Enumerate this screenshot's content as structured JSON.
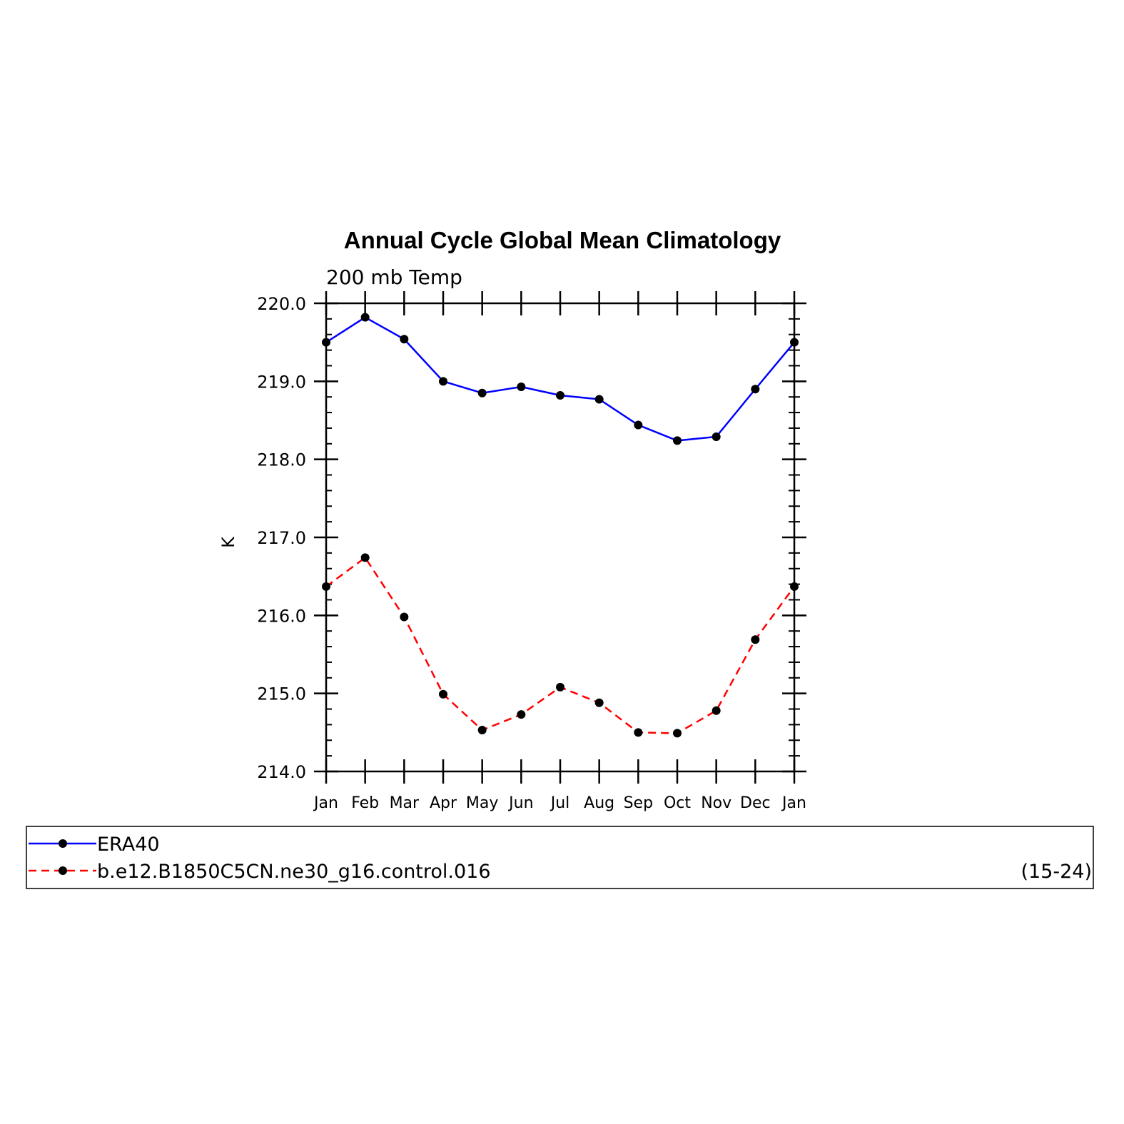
{
  "chart_data": {
    "type": "line",
    "title": "Annual Cycle Global Mean Climatology",
    "subtitle": "200 mb Temp",
    "xlabel": "",
    "ylabel": "K",
    "categories": [
      "Jan",
      "Feb",
      "Mar",
      "Apr",
      "May",
      "Jun",
      "Jul",
      "Aug",
      "Sep",
      "Oct",
      "Nov",
      "Dec",
      "Jan"
    ],
    "ylim": [
      214.0,
      220.0
    ],
    "yticks": [
      "214.0",
      "215.0",
      "216.0",
      "217.0",
      "218.0",
      "219.0",
      "220.0"
    ],
    "grid": false,
    "legend_placement": "bottom",
    "series": [
      {
        "name": "ERA40",
        "color": "#0000ff",
        "style": "solid",
        "values": [
          219.5,
          219.82,
          219.54,
          219.0,
          218.85,
          218.93,
          218.82,
          218.77,
          218.44,
          218.24,
          218.29,
          218.9,
          219.5
        ]
      },
      {
        "name": "b.e12.B1850C5CN.ne30_g16.control.016",
        "color": "#ff0000",
        "style": "dashed",
        "values": [
          216.37,
          216.74,
          215.98,
          214.99,
          214.53,
          214.73,
          215.08,
          214.88,
          214.5,
          214.49,
          214.78,
          215.69,
          216.37
        ]
      }
    ],
    "legend_note": "(15-24)"
  }
}
